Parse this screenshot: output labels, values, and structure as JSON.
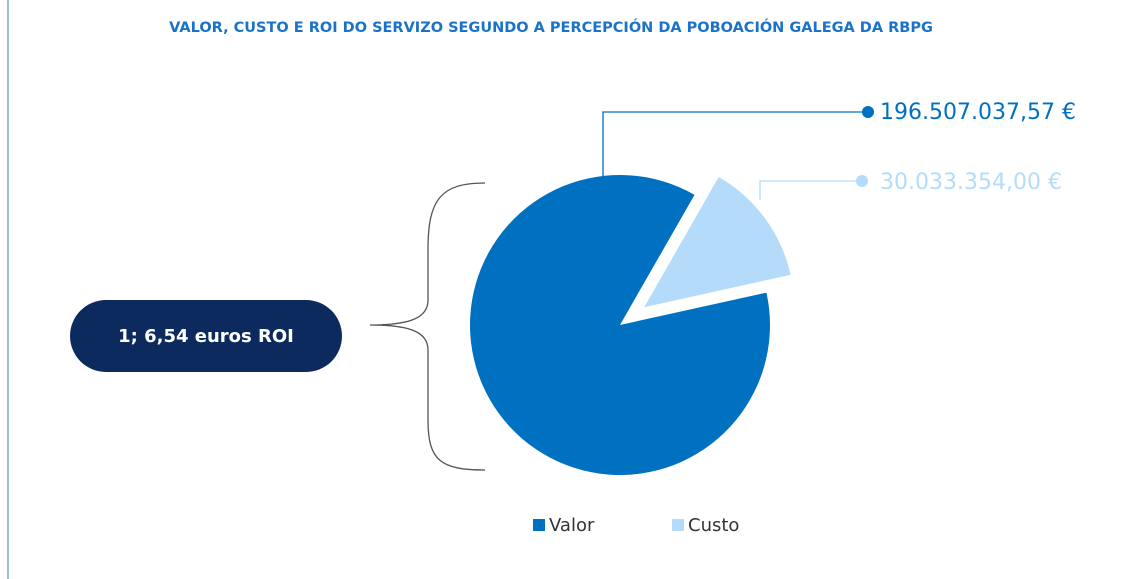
{
  "chart_data": {
    "type": "pie",
    "title": "VALOR, CUSTO  E ROI DO SERVIZO SEGUNDO A PERCEPCIÓN DA POBOACIÓN GALEGA DA RBPG",
    "categories": [
      "Valor",
      "Custo"
    ],
    "values": [
      196507037.57,
      30033354.0
    ],
    "value_labels": [
      "196.507.037,57 €",
      "30.033.354,00 €"
    ],
    "colors": [
      "#0070c0",
      "#b4dcfa"
    ],
    "annotation": "1; 6,54 euros ROI"
  }
}
